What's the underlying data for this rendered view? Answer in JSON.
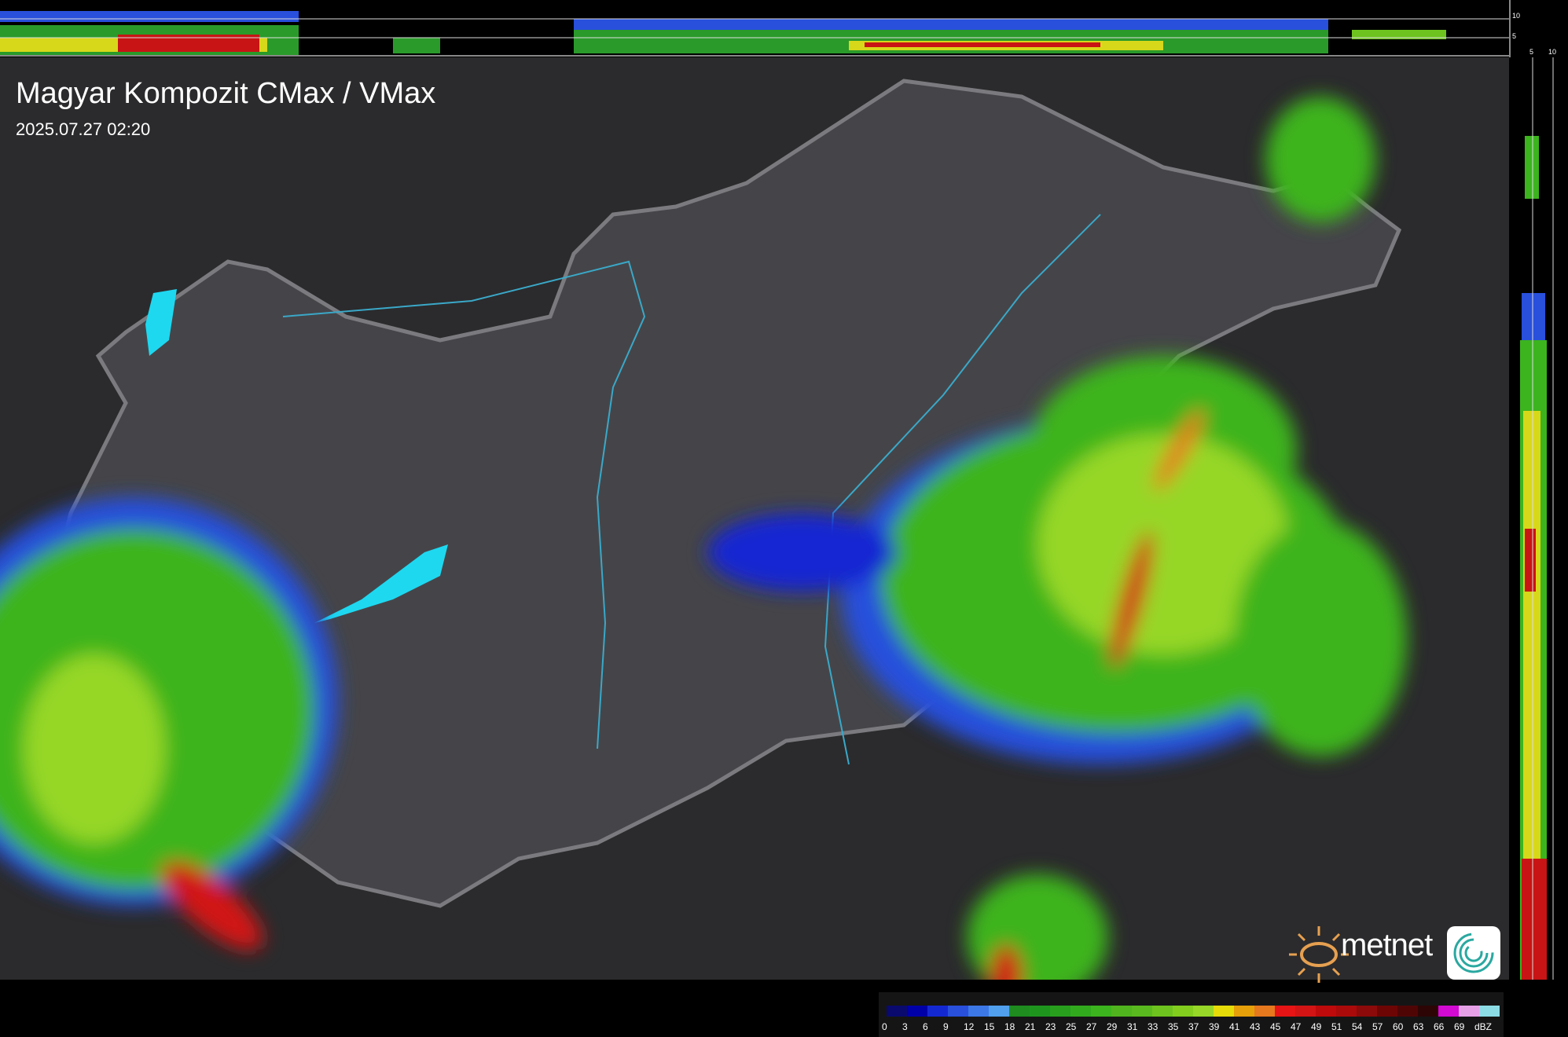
{
  "header": {
    "title": "Magyar Kompozit CMax / VMax",
    "timestamp": "2025.07.27 02:20"
  },
  "profile_axes": {
    "top_ticks": [
      "10",
      "5"
    ],
    "side_ticks": [
      "5",
      "10"
    ]
  },
  "legend": {
    "labels": [
      "0",
      "3",
      "6",
      "9",
      "12",
      "15",
      "18",
      "21",
      "23",
      "25",
      "27",
      "29",
      "31",
      "33",
      "35",
      "37",
      "39",
      "41",
      "43",
      "45",
      "47",
      "49",
      "51",
      "54",
      "57",
      "60",
      "63",
      "66",
      "69",
      "dBZ"
    ],
    "colors": [
      "#0a0a6e",
      "#0000a8",
      "#1428d2",
      "#2850dc",
      "#3c78e6",
      "#50a0ee",
      "#1e8c1e",
      "#1e961e",
      "#28a01e",
      "#32aa1e",
      "#3cb41e",
      "#50b41e",
      "#5ab91e",
      "#6ec31e",
      "#82cd1e",
      "#96d728",
      "#e6dc0a",
      "#e6a00a",
      "#e6781e",
      "#e61414",
      "#d21414",
      "#be0a0a",
      "#aa0a0a",
      "#8c0a0a",
      "#6e0505",
      "#500505",
      "#2d0505",
      "#d20ad2",
      "#e6a0e6",
      "#8cdce6"
    ]
  },
  "brand": {
    "name": "metnet",
    "accent": "#e6a050"
  }
}
